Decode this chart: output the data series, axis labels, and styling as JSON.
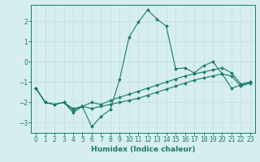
{
  "xlabel": "Humidex (Indice chaleur)",
  "bg_color": "#d6eeee",
  "grid_color": "#b8d8d8",
  "line_color": "#1a7a6e",
  "xlim": [
    -0.5,
    23.5
  ],
  "ylim": [
    -3.5,
    2.8
  ],
  "xticks": [
    0,
    1,
    2,
    3,
    4,
    5,
    6,
    7,
    8,
    9,
    10,
    11,
    12,
    13,
    14,
    15,
    16,
    17,
    18,
    19,
    20,
    21,
    22,
    23
  ],
  "yticks": [
    -3,
    -2,
    -1,
    0,
    1,
    2
  ],
  "lines": [
    {
      "x": [
        0,
        1,
        2,
        3,
        4,
        5,
        6,
        7,
        8,
        9,
        10,
        11,
        12,
        13,
        14,
        15,
        16,
        17,
        18,
        19,
        20,
        21,
        22,
        23
      ],
      "y": [
        -1.3,
        -2.0,
        -2.1,
        -2.0,
        -2.5,
        -2.2,
        -3.2,
        -2.7,
        -2.35,
        -0.85,
        1.2,
        1.95,
        2.55,
        2.1,
        1.75,
        -0.35,
        -0.3,
        -0.55,
        -0.2,
        0.0,
        -0.6,
        -1.3,
        -1.15,
        -1.0
      ]
    },
    {
      "x": [
        0,
        1,
        2,
        3,
        4,
        5,
        6,
        7,
        8,
        9,
        10,
        11,
        12,
        13,
        14,
        15,
        16,
        17,
        18,
        19,
        20,
        21,
        22,
        23
      ],
      "y": [
        -1.3,
        -2.0,
        -2.1,
        -2.0,
        -2.3,
        -2.2,
        -2.0,
        -2.1,
        -1.9,
        -1.75,
        -1.6,
        -1.45,
        -1.3,
        -1.15,
        -1.0,
        -0.85,
        -0.7,
        -0.6,
        -0.5,
        -0.4,
        -0.3,
        -0.55,
        -1.1,
        -1.0
      ]
    },
    {
      "x": [
        0,
        1,
        2,
        3,
        4,
        5,
        6,
        7,
        8,
        9,
        10,
        11,
        12,
        13,
        14,
        15,
        16,
        17,
        18,
        19,
        20,
        21,
        22,
        23
      ],
      "y": [
        -1.3,
        -2.0,
        -2.1,
        -2.0,
        -2.4,
        -2.2,
        -2.3,
        -2.2,
        -2.1,
        -2.0,
        -1.9,
        -1.8,
        -1.65,
        -1.5,
        -1.35,
        -1.2,
        -1.05,
        -0.9,
        -0.8,
        -0.7,
        -0.6,
        -0.7,
        -1.2,
        -1.05
      ]
    }
  ]
}
